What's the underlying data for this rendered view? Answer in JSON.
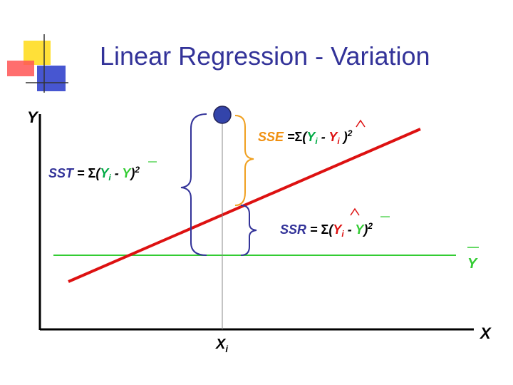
{
  "title": "Linear Regression - Variation",
  "axes": {
    "y_label": "Y",
    "x_label": "X",
    "xi_main": "X",
    "xi_sub": "i"
  },
  "mean_label": "Y",
  "sst": {
    "name": "SST",
    "eq": " = ",
    "sum": "Σ",
    "open": "(",
    "yi": "Y",
    "sub": "i",
    "minus": " - ",
    "ybar": "Y",
    "close": ")",
    "sq": "2"
  },
  "sse": {
    "name": "SSE",
    "eq": " =",
    "sum": "Σ",
    "open": "(",
    "yi": "Y",
    "sub": "i",
    "minus": " - ",
    "yhat": "Y",
    "hat_sub": "i",
    "close": " )",
    "sq": "2"
  },
  "ssr": {
    "name": "SSR",
    "eq": " = ",
    "sum": "Σ",
    "open": "(",
    "yhat": "Y",
    "sub": "i",
    "minus": " - ",
    "ybar": "Y",
    "close": ")",
    "sq": "2"
  },
  "colors": {
    "title": "#333399",
    "regression_line": "#dd1111",
    "mean_line": "#33cc33",
    "sst_brace": "#333399",
    "sse_brace": "#f0a020",
    "ssr_brace": "#333399",
    "point": "#3344aa",
    "sse_text": "#f09010",
    "ssr_text": "#333399",
    "sst_text": "#333399",
    "var_text": "#000000",
    "sub_text": "#00aa44"
  }
}
